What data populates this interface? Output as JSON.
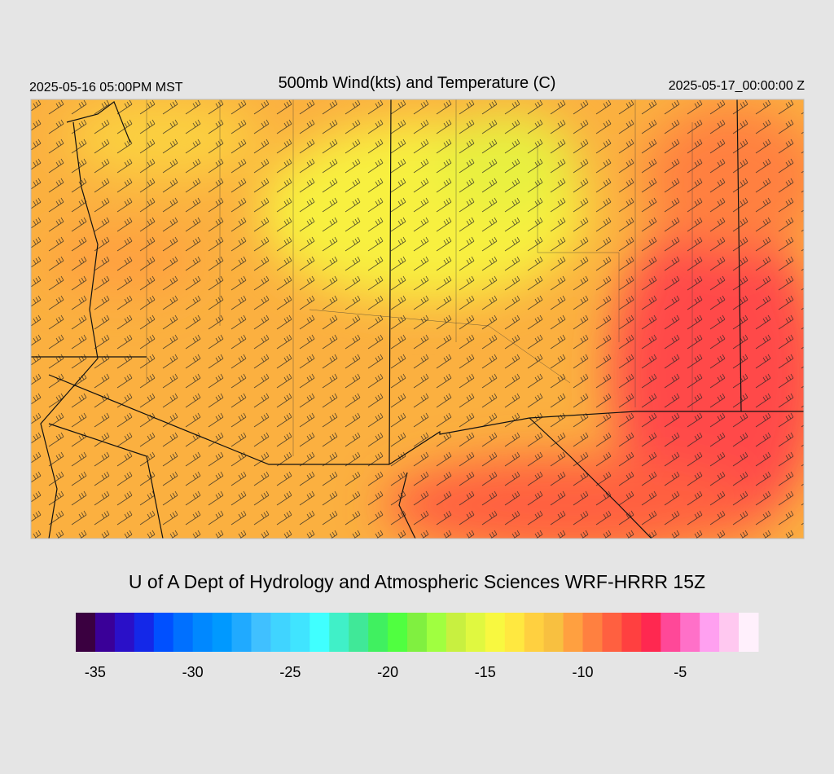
{
  "header": {
    "title": "500mb Wind(kts) and Temperature (C)",
    "valid_local": "2025-05-16 05:00PM MST",
    "valid_utc": "2025-05-17_00:00:00 Z"
  },
  "footer": {
    "credit": "U of A Dept of Hydrology and Atmospheric Sciences WRF-HRRR 15Z"
  },
  "colorbar": {
    "min": -36,
    "max": -1,
    "colors": [
      "#3a0040",
      "#3a0098",
      "#2a10c8",
      "#1428e8",
      "#0050ff",
      "#0070ff",
      "#0088ff",
      "#0099ff",
      "#20aaff",
      "#40c0ff",
      "#40d4ff",
      "#40e4ff",
      "#40ffff",
      "#40f0c8",
      "#40e898",
      "#40f060",
      "#50ff40",
      "#80f040",
      "#a0ff40",
      "#c8f040",
      "#e0f840",
      "#f8f840",
      "#ffe840",
      "#ffd040",
      "#f8c040",
      "#ffa040",
      "#ff8040",
      "#ff6040",
      "#ff4040",
      "#ff2850",
      "#ff4898",
      "#ff70c8",
      "#ffa0f0",
      "#ffc8f0",
      "#fff0fc"
    ],
    "ticks": [
      -35,
      -30,
      -25,
      -20,
      -15,
      -10,
      -5
    ]
  }
}
